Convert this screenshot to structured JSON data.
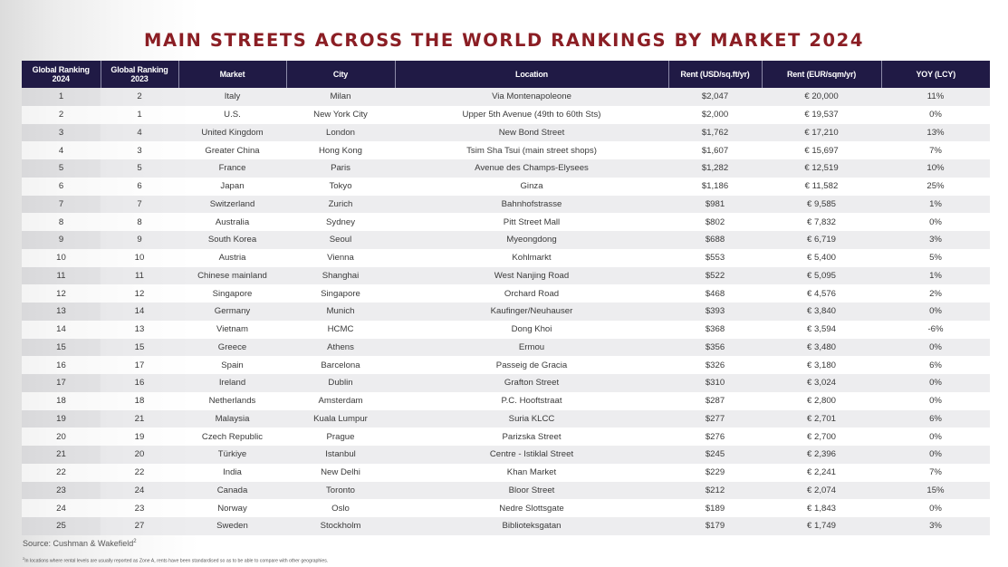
{
  "title": "MAIN STREETS ACROSS THE WORLD RANKINGS BY MARKET 2024",
  "table": {
    "columns": [
      "Global Ranking 2024",
      "Global Ranking 2023",
      "Market",
      "City",
      "Location",
      "Rent (USD/sq.ft/yr)",
      "Rent (EUR/sqm/yr)",
      "YOY (LCY)"
    ],
    "rows": [
      [
        "1",
        "2",
        "Italy",
        "Milan",
        "Via Montenapoleone",
        "$2,047",
        "€ 20,000",
        "11%"
      ],
      [
        "2",
        "1",
        "U.S.",
        "New York City",
        "Upper 5th Avenue (49th to 60th Sts)",
        "$2,000",
        "€ 19,537",
        "0%"
      ],
      [
        "3",
        "4",
        "United Kingdom",
        "London",
        "New Bond Street",
        "$1,762",
        "€ 17,210",
        "13%"
      ],
      [
        "4",
        "3",
        "Greater China",
        "Hong Kong",
        "Tsim Sha Tsui (main street shops)",
        "$1,607",
        "€ 15,697",
        "7%"
      ],
      [
        "5",
        "5",
        "France",
        "Paris",
        "Avenue des Champs-Elysees",
        "$1,282",
        "€ 12,519",
        "10%"
      ],
      [
        "6",
        "6",
        "Japan",
        "Tokyo",
        "Ginza",
        "$1,186",
        "€ 11,582",
        "25%"
      ],
      [
        "7",
        "7",
        "Switzerland",
        "Zurich",
        "Bahnhofstrasse",
        "$981",
        "€ 9,585",
        "1%"
      ],
      [
        "8",
        "8",
        "Australia",
        "Sydney",
        "Pitt Street Mall",
        "$802",
        "€ 7,832",
        "0%"
      ],
      [
        "9",
        "9",
        "South Korea",
        "Seoul",
        "Myeongdong",
        "$688",
        "€ 6,719",
        "3%"
      ],
      [
        "10",
        "10",
        "Austria",
        "Vienna",
        "Kohlmarkt",
        "$553",
        "€ 5,400",
        "5%"
      ],
      [
        "11",
        "11",
        "Chinese mainland",
        "Shanghai",
        "West Nanjing Road",
        "$522",
        "€ 5,095",
        "1%"
      ],
      [
        "12",
        "12",
        "Singapore",
        "Singapore",
        "Orchard Road",
        "$468",
        "€ 4,576",
        "2%"
      ],
      [
        "13",
        "14",
        "Germany",
        "Munich",
        "Kaufinger/Neuhauser",
        "$393",
        "€ 3,840",
        "0%"
      ],
      [
        "14",
        "13",
        "Vietnam",
        "HCMC",
        "Dong Khoi",
        "$368",
        "€ 3,594",
        "-6%"
      ],
      [
        "15",
        "15",
        "Greece",
        "Athens",
        "Ermou",
        "$356",
        "€ 3,480",
        "0%"
      ],
      [
        "16",
        "17",
        "Spain",
        "Barcelona",
        "Passeig de Gracia",
        "$326",
        "€ 3,180",
        "6%"
      ],
      [
        "17",
        "16",
        "Ireland",
        "Dublin",
        "Grafton Street",
        "$310",
        "€ 3,024",
        "0%"
      ],
      [
        "18",
        "18",
        "Netherlands",
        "Amsterdam",
        "P.C. Hooftstraat",
        "$287",
        "€ 2,800",
        "0%"
      ],
      [
        "19",
        "21",
        "Malaysia",
        "Kuala Lumpur",
        "Suria KLCC",
        "$277",
        "€ 2,701",
        "6%"
      ],
      [
        "20",
        "19",
        "Czech Republic",
        "Prague",
        "Parizska Street",
        "$276",
        "€ 2,700",
        "0%"
      ],
      [
        "21",
        "20",
        "Türkiye",
        "Istanbul",
        "Centre - Istiklal Street",
        "$245",
        "€ 2,396",
        "0%"
      ],
      [
        "22",
        "22",
        "India",
        "New Delhi",
        "Khan Market",
        "$229",
        "€ 2,241",
        "7%"
      ],
      [
        "23",
        "24",
        "Canada",
        "Toronto",
        "Bloor Street",
        "$212",
        "€ 2,074",
        "15%"
      ],
      [
        "24",
        "23",
        "Norway",
        "Oslo",
        "Nedre Slottsgate",
        "$189",
        "€ 1,843",
        "0%"
      ],
      [
        "25",
        "27",
        "Sweden",
        "Stockholm",
        "Biblioteksgatan",
        "$179",
        "€ 1,749",
        "3%"
      ]
    ]
  },
  "source": {
    "text": "Source: Cushman & Wakefield",
    "marker": "2"
  },
  "footnote": {
    "marker": "2",
    "text": "In locations where rental levels are usually reported as Zone A, rents have been standardised so as to be able to compare with other geographies."
  },
  "colors": {
    "title": "#8b1e24",
    "header_bg": "#201a45",
    "header_text": "#ffffff",
    "row_alt_bg": "#e6e6ea",
    "body_text": "#3a3a3a"
  }
}
